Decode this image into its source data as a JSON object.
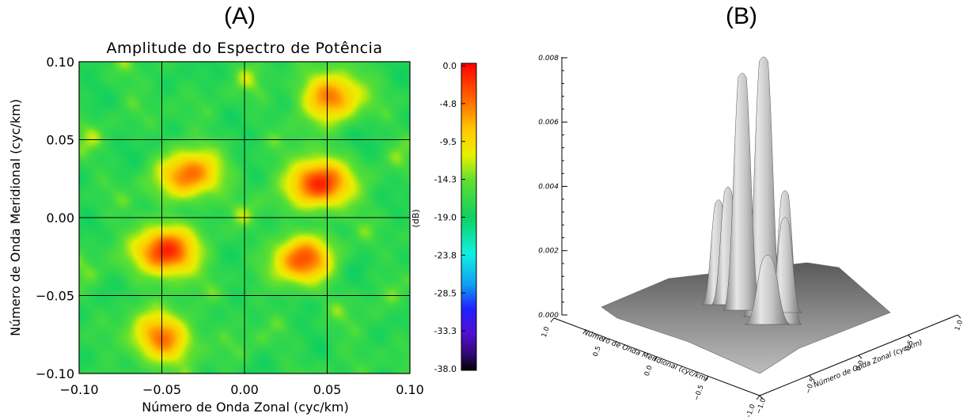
{
  "panels": {
    "a_label": "(A)",
    "b_label": "(B)"
  },
  "chart_data": [
    {
      "type": "heatmap",
      "title": "Amplitude do Espectro de Potência",
      "xlabel": "Número de Onda Zonal (cyc/km)",
      "ylabel": "Número de Onda Meridional (cyc/km)",
      "xlim": [
        -0.1,
        0.1
      ],
      "ylim": [
        -0.1,
        0.1
      ],
      "x_ticks": [
        "−0.10",
        "−0.05",
        "0.00",
        "0.05",
        "0.10"
      ],
      "y_ticks": [
        "0.10",
        "0.05",
        "0.00",
        "−0.05",
        "−0.10"
      ],
      "grid": true,
      "colorbar": {
        "label": "(dB)",
        "range": [
          -38.0,
          0.0
        ],
        "ticks": [
          "0.0",
          "-4.8",
          "-9.5",
          "-14.3",
          "-19.0",
          "-23.8",
          "-28.5",
          "-33.3",
          "-38.0"
        ]
      },
      "peaks": [
        {
          "x": 0.045,
          "y": 0.022,
          "value": -1.5
        },
        {
          "x": -0.048,
          "y": -0.022,
          "value": -1.5
        },
        {
          "x": -0.033,
          "y": 0.027,
          "value": -4.5
        },
        {
          "x": 0.035,
          "y": -0.027,
          "value": -4.5
        },
        {
          "x": 0.052,
          "y": 0.078,
          "value": -5.0
        },
        {
          "x": -0.049,
          "y": -0.077,
          "value": -5.0
        }
      ],
      "background_db": -19.0
    },
    {
      "type": "surface",
      "zlim": [
        0.0,
        0.008
      ],
      "z_ticks": [
        "0.000",
        "0.002",
        "0.004",
        "0.006",
        "0.008"
      ],
      "x_axis_label": "Número de Onda Zonal (cyc/km)",
      "y_axis_label": "Número de Onda Meridional (cyc/km)",
      "x_ticks": [
        "−1.0",
        "−0.5",
        "0.0",
        "0.5",
        "1.0"
      ],
      "y_ticks": [
        "1.0",
        "0.5",
        "0.0",
        "−0.5",
        "−1.0"
      ],
      "peaks_height": [
        0.0081,
        0.0074,
        0.0042,
        0.0037,
        0.0033,
        0.003,
        0.0022
      ]
    }
  ]
}
